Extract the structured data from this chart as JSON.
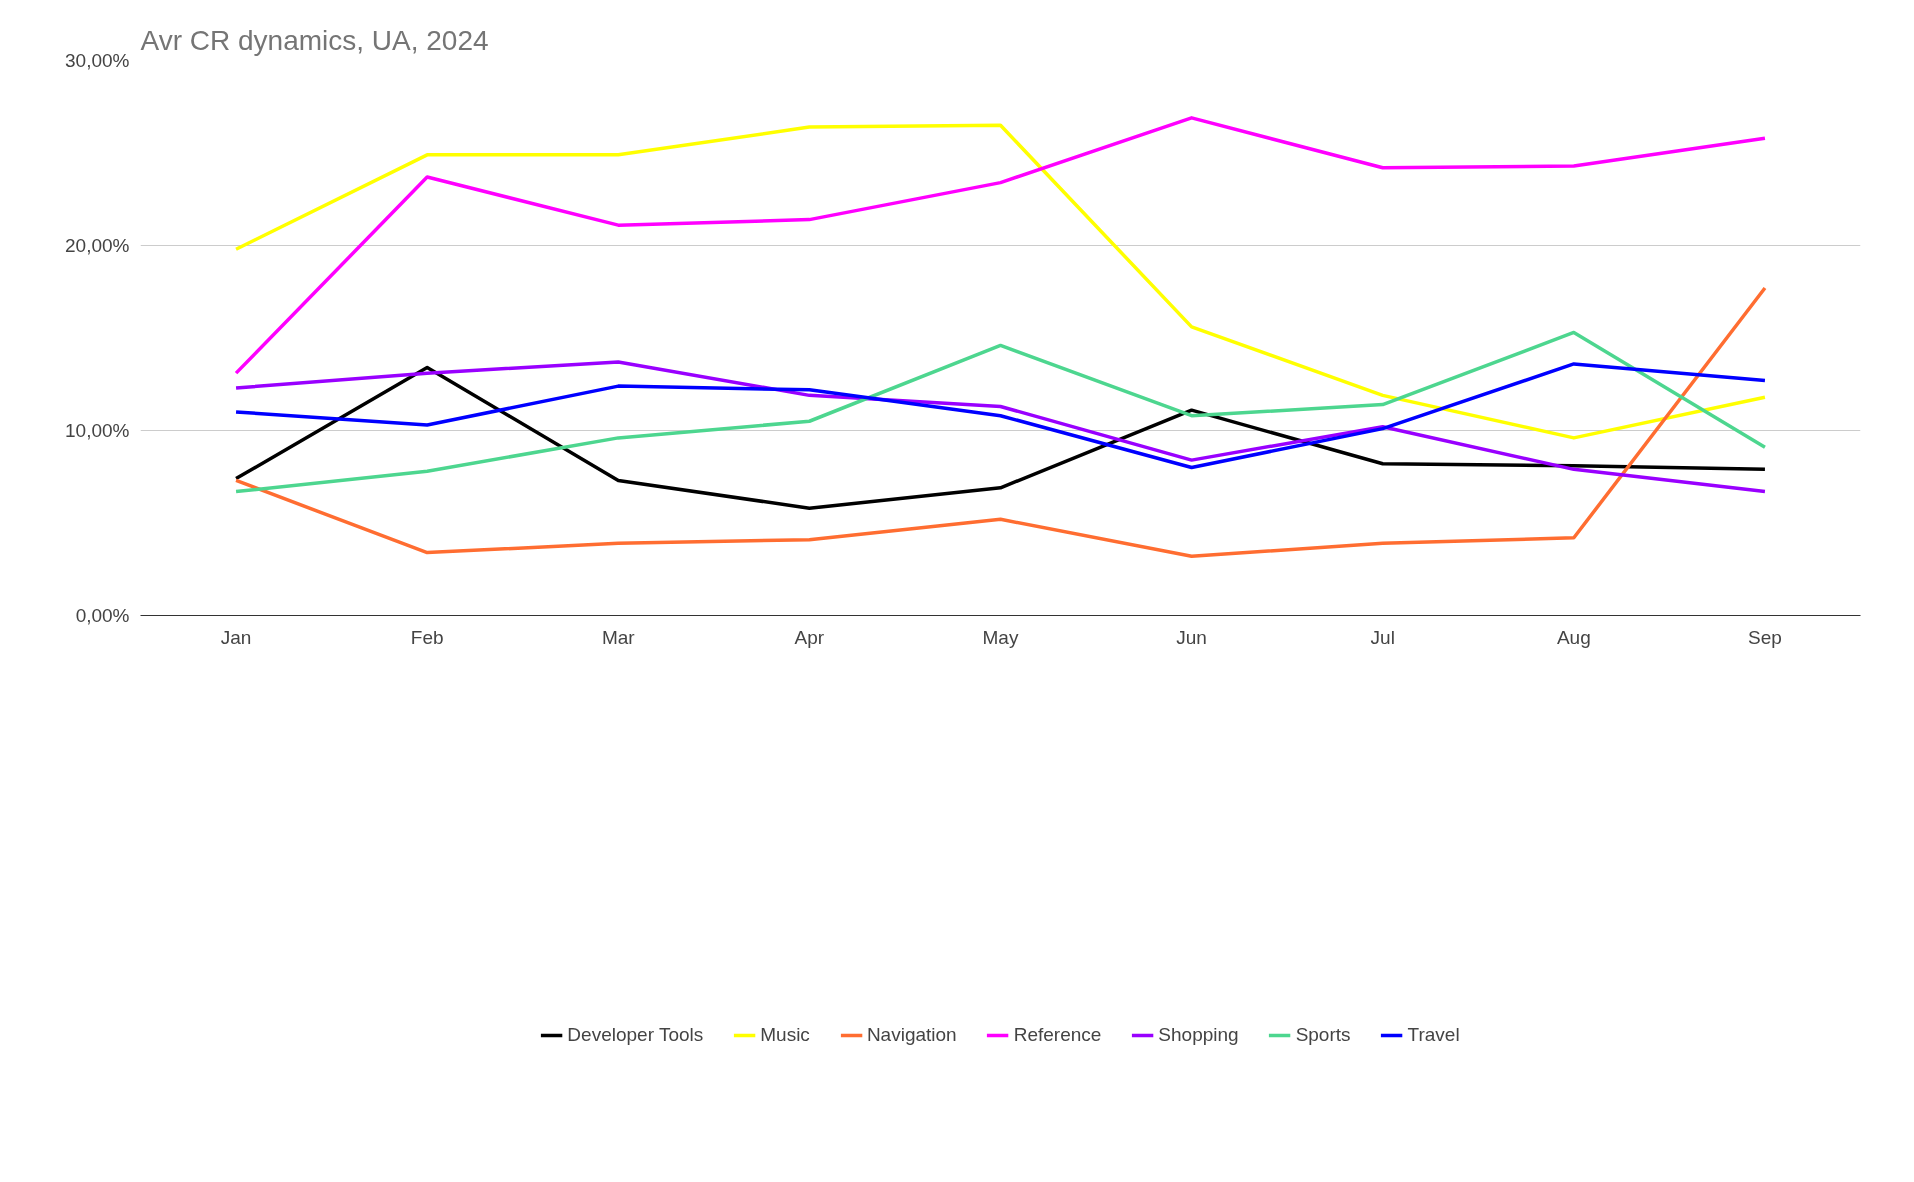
{
  "chart_data": {
    "type": "line",
    "title": "Avr CR dynamics, UA, 2024",
    "categories": [
      "Jan",
      "Feb",
      "Mar",
      "Apr",
      "May",
      "Jun",
      "Jul",
      "Aug",
      "Sep"
    ],
    "ylim": [
      0,
      30
    ],
    "yticks": [
      {
        "value": 0,
        "label": "0,00%"
      },
      {
        "value": 10,
        "label": "10,00%"
      },
      {
        "value": 20,
        "label": "20,00%"
      },
      {
        "value": 30,
        "label": "30,00%"
      }
    ],
    "grid": "y",
    "legend": "bottom",
    "marker": "none",
    "line_style": "solid",
    "series": [
      {
        "name": "Developer Tools",
        "color": "#000000",
        "values": [
          7.4,
          13.4,
          7.3,
          5.8,
          6.9,
          11.1,
          8.2,
          8.1,
          7.9
        ]
      },
      {
        "name": "Music",
        "color": "#ffff00",
        "values": [
          19.8,
          24.9,
          24.9,
          26.4,
          26.5,
          15.6,
          11.9,
          9.6,
          11.8
        ]
      },
      {
        "name": "Navigation",
        "color": "#ff6d31",
        "values": [
          7.3,
          3.4,
          3.9,
          4.1,
          5.2,
          3.2,
          3.9,
          4.2,
          17.7
        ]
      },
      {
        "name": "Reference",
        "color": "#ff00ff",
        "values": [
          13.1,
          23.7,
          21.1,
          21.4,
          23.4,
          26.9,
          24.2,
          24.3,
          25.8
        ]
      },
      {
        "name": "Shopping",
        "color": "#9900ff",
        "values": [
          12.3,
          13.1,
          13.7,
          11.9,
          11.3,
          8.4,
          10.2,
          7.9,
          6.7
        ]
      },
      {
        "name": "Sports",
        "color": "#4dd68f",
        "values": [
          6.7,
          7.8,
          9.6,
          10.5,
          14.6,
          10.8,
          11.4,
          15.3,
          9.1
        ]
      },
      {
        "name": "Travel",
        "color": "#0000ff",
        "values": [
          11.0,
          10.3,
          12.4,
          12.2,
          10.8,
          8.0,
          10.1,
          13.6,
          12.7
        ]
      }
    ]
  }
}
